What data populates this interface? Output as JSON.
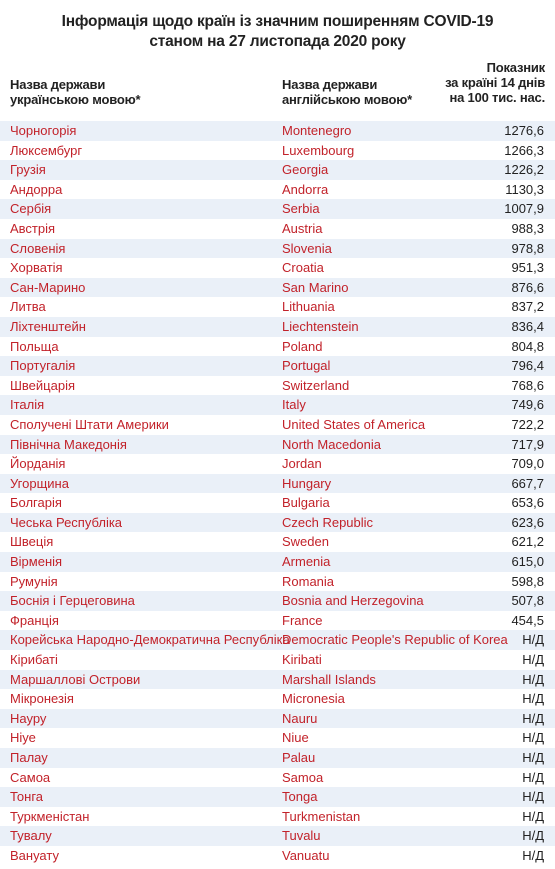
{
  "title": {
    "line1": "Інформація щодо країн із значним поширенням COVID-19",
    "line2": "станом на 27 листопада 2020 року"
  },
  "headers": {
    "ua_line1": "Назва держави",
    "ua_line2": "українською мовою*",
    "en_line1": "Назва держави",
    "en_line2": "англійською мовою*",
    "val_line1": "Показник",
    "val_line2": "за країні 14 днів",
    "val_line3": "на 100 тис. нас."
  },
  "rows": [
    {
      "ua": "Чорногорія",
      "en": "Montenegro",
      "value": "1276,6"
    },
    {
      "ua": "Люксембург",
      "en": "Luxembourg",
      "value": "1266,3"
    },
    {
      "ua": "Грузія",
      "en": "Georgia",
      "value": "1226,2"
    },
    {
      "ua": "Андорра",
      "en": "Andorra",
      "value": "1130,3"
    },
    {
      "ua": "Сербія",
      "en": "Serbia",
      "value": "1007,9"
    },
    {
      "ua": "Австрія",
      "en": "Austria",
      "value": "988,3"
    },
    {
      "ua": "Словенія",
      "en": "Slovenia",
      "value": "978,8"
    },
    {
      "ua": "Хорватія",
      "en": "Croatia",
      "value": "951,3"
    },
    {
      "ua": "Сан-Марино",
      "en": "San Marino",
      "value": "876,6"
    },
    {
      "ua": "Литва",
      "en": "Lithuania",
      "value": "837,2"
    },
    {
      "ua": "Ліхтенштейн",
      "en": "Liechtenstein",
      "value": "836,4"
    },
    {
      "ua": "Польща",
      "en": "Poland",
      "value": "804,8"
    },
    {
      "ua": "Португалія",
      "en": "Portugal",
      "value": "796,4"
    },
    {
      "ua": "Швейцарія",
      "en": "Switzerland",
      "value": "768,6"
    },
    {
      "ua": "Італія",
      "en": "Italy",
      "value": "749,6"
    },
    {
      "ua": "Сполучені Штати Америки",
      "en": "United States of America",
      "value": "722,2"
    },
    {
      "ua": "Північна Македонія",
      "en": "North Macedonia",
      "value": "717,9"
    },
    {
      "ua": "Йорданія",
      "en": "Jordan",
      "value": "709,0"
    },
    {
      "ua": "Угорщина",
      "en": "Hungary",
      "value": "667,7"
    },
    {
      "ua": "Болгарія",
      "en": "Bulgaria",
      "value": "653,6"
    },
    {
      "ua": "Чеська Республіка",
      "en": "Czech Republic",
      "value": "623,6"
    },
    {
      "ua": "Швеція",
      "en": "Sweden",
      "value": "621,2"
    },
    {
      "ua": "Вірменія",
      "en": "Armenia",
      "value": "615,0"
    },
    {
      "ua": "Румунія",
      "en": "Romania",
      "value": "598,8"
    },
    {
      "ua": "Боснія і Герцеговина",
      "en": "Bosnia and Herzegovina",
      "value": "507,8"
    },
    {
      "ua": "Франція",
      "en": "France",
      "value": "454,5"
    },
    {
      "ua": "Корейська Народно-Демократична Республіка",
      "en": "Democratic People's Republic of Korea",
      "value": "Н/Д"
    },
    {
      "ua": "Кірибаті",
      "en": "Kiribati",
      "value": "Н/Д"
    },
    {
      "ua": "Маршаллові Острови",
      "en": "Marshall Islands",
      "value": "Н/Д"
    },
    {
      "ua": "Мікронезія",
      "en": "Micronesia",
      "value": "Н/Д"
    },
    {
      "ua": "Науру",
      "en": "Nauru",
      "value": "Н/Д"
    },
    {
      "ua": "Ніуе",
      "en": "Niue",
      "value": "Н/Д"
    },
    {
      "ua": "Палау",
      "en": "Palau",
      "value": "Н/Д"
    },
    {
      "ua": "Самоа",
      "en": "Samoa",
      "value": "Н/Д"
    },
    {
      "ua": "Тонга",
      "en": "Tonga",
      "value": "Н/Д"
    },
    {
      "ua": "Туркменістан",
      "en": "Turkmenistan",
      "value": "Н/Д"
    },
    {
      "ua": "Тувалу",
      "en": "Tuvalu",
      "value": "Н/Д"
    },
    {
      "ua": "Вануату",
      "en": "Vanuatu",
      "value": "Н/Д"
    }
  ]
}
